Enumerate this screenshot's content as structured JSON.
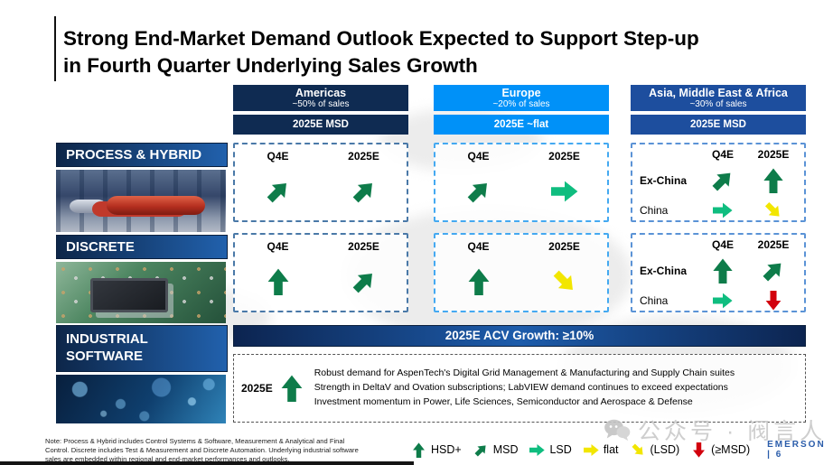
{
  "title": {
    "line1": "Strong End-Market Demand Outlook Expected to Support Step-up",
    "line2": "in Fourth Quarter Underlying Sales Growth"
  },
  "regions": {
    "americas": {
      "name": "Americas",
      "share": "~50% of sales",
      "outlook": "2025E MSD",
      "color": "#0f2b52"
    },
    "europe": {
      "name": "Europe",
      "share": "~20% of sales",
      "outlook": "2025E ~flat",
      "color": "#0091f8"
    },
    "asia": {
      "name": "Asia, Middle East & Africa",
      "share": "~30% of sales",
      "outlook": "2025E MSD",
      "color": "#1d4e9e"
    }
  },
  "segments": {
    "process": "PROCESS & HYBRID",
    "discrete": "DISCRETE",
    "software": "INDUSTRIAL SOFTWARE"
  },
  "col_labels": {
    "q4": "Q4E",
    "fy": "2025E"
  },
  "asia_rows": {
    "ex": "Ex-China",
    "cn": "China"
  },
  "matrix": {
    "process": {
      "americas": {
        "q4": "msd",
        "fy": "msd"
      },
      "europe": {
        "q4": "msd",
        "fy": "lsd"
      },
      "asia": {
        "ex": {
          "q4": "msd",
          "fy": "hsd"
        },
        "cn": {
          "q4": "lsd",
          "fy": "lsd_down"
        }
      }
    },
    "discrete": {
      "americas": {
        "q4": "hsd",
        "fy": "msd"
      },
      "europe": {
        "q4": "hsd",
        "fy": "lsd_down"
      },
      "asia": {
        "ex": {
          "q4": "hsd",
          "fy": "msd"
        },
        "cn": {
          "q4": "lsd",
          "fy": "msd_down"
        }
      }
    }
  },
  "software": {
    "acv": "2025E ACV Growth: ≥10%",
    "year_label": "2025E",
    "arrow": "hsd",
    "bullets": [
      "Robust demand for AspenTech's Digital Grid Management & Manufacturing and Supply Chain suites",
      "Strength in DeltaV and Ovation subscriptions; LabVIEW demand continues to exceed expectations",
      "Investment momentum in Power, Life Sciences, Semiconductor and Aerospace & Defense"
    ]
  },
  "legend": [
    {
      "arrow": "hsd",
      "label": "HSD+"
    },
    {
      "arrow": "msd",
      "label": "MSD"
    },
    {
      "arrow": "lsd",
      "label": "LSD"
    },
    {
      "arrow": "flat",
      "label": "flat"
    },
    {
      "arrow": "lsd_down",
      "label": "(LSD)"
    },
    {
      "arrow": "msd_down",
      "label": "(≥MSD)"
    }
  ],
  "arrow_styles": {
    "hsd": {
      "dir": "up",
      "color": "#0e7c4a"
    },
    "msd": {
      "dir": "up-right",
      "color": "#0e7c4a"
    },
    "lsd": {
      "dir": "right",
      "color": "#0fbd7f"
    },
    "flat": {
      "dir": "right",
      "color": "#f2e600"
    },
    "lsd_down": {
      "dir": "down-right",
      "color": "#f2e600"
    },
    "msd_down": {
      "dir": "down",
      "color": "#d2010d"
    }
  },
  "footer": {
    "note_lines": [
      "Note: Process & Hybrid includes Control Systems & Software, Measurement & Analytical and Final",
      "Control. Discrete includes Test & Measurement and Discrete Automation. Underlying industrial software",
      "sales are embedded within regional and end-market performances and outlooks."
    ],
    "brand_line": "EMERSON | 6"
  },
  "watermark": "公众号 · 阀言人"
}
